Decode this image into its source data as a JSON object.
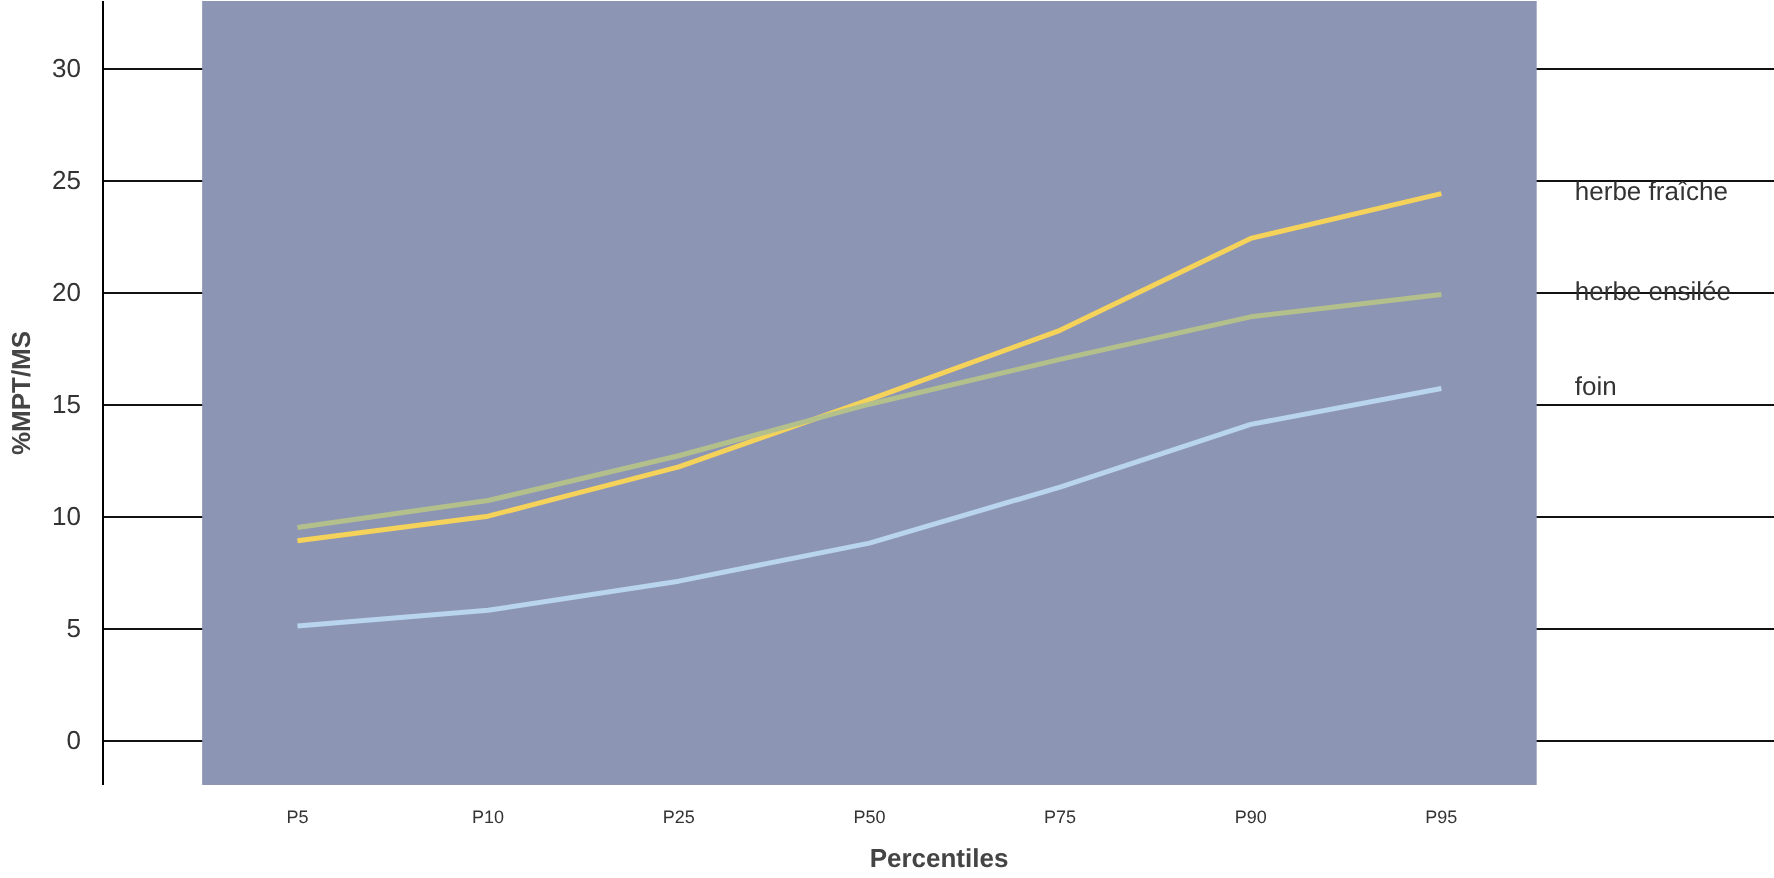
{
  "chart_data": {
    "type": "line",
    "xlabel": "Percentiles",
    "ylabel": "%MPT/MS",
    "categories": [
      "P5",
      "P10",
      "P25",
      "P50",
      "P75",
      "P90",
      "P95"
    ],
    "series": [
      {
        "name": "herbe fraîche",
        "color": "#f5d25a",
        "values": [
          8.9,
          10.0,
          12.2,
          15.2,
          18.3,
          22.4,
          24.4
        ]
      },
      {
        "name": "herbe ensilée",
        "color": "#b4c08c",
        "values": [
          9.5,
          10.7,
          12.7,
          15.0,
          17.0,
          18.9,
          19.9
        ]
      },
      {
        "name": "foin",
        "color": "#b8d4ee",
        "values": [
          5.1,
          5.8,
          7.1,
          8.8,
          11.3,
          14.1,
          15.7
        ]
      }
    ],
    "ylim": [
      -2,
      33
    ],
    "yticks": [
      0,
      5,
      10,
      15,
      20,
      25,
      30
    ],
    "grid": true,
    "legend": false,
    "marker": "none",
    "line_style": "solid"
  }
}
